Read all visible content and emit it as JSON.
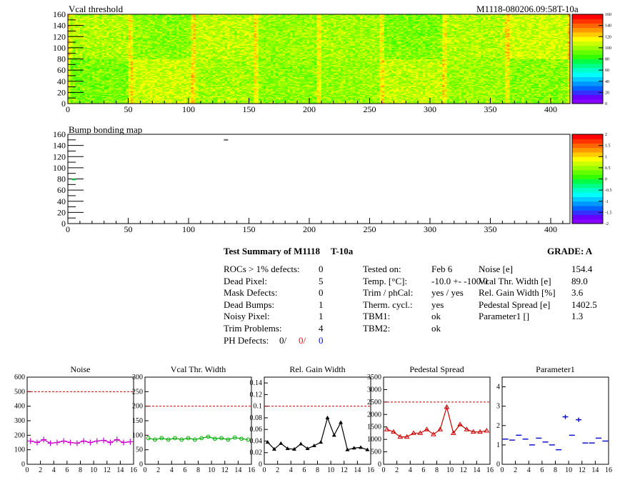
{
  "header": {
    "module_id": "M1118-080206.09:58T-10a"
  },
  "heatmap_vcal": {
    "title": "Vcal threshold"
  },
  "heatmap_bump": {
    "title": "Bump bonding map"
  },
  "summary": {
    "title": "Test Summary of M1118",
    "test_code": "T-10a",
    "grade_label": "GRADE:  A",
    "defects": [
      {
        "label": "ROCs > 1% defects:",
        "value": "0"
      },
      {
        "label": "Dead Pixel:",
        "value": "5"
      },
      {
        "label": "Mask Defects:",
        "value": "0"
      },
      {
        "label": "Dead Bumps:",
        "value": "1"
      },
      {
        "label": "Noisy Pixel:",
        "value": "1"
      },
      {
        "label": "Trim Problems:",
        "value": "4"
      }
    ],
    "ph_defects": {
      "label": "PH Defects:",
      "v1": "0/",
      "v2": "0/",
      "v3": "0"
    },
    "conditions": [
      {
        "label": "Tested on:",
        "value": "Feb 6"
      },
      {
        "label": "Temp. [°C]:",
        "value": "-10.0 +- -100.0"
      },
      {
        "label": "Trim / phCal:",
        "value": "yes / yes"
      },
      {
        "label": "Therm. cycl.:",
        "value": "yes"
      },
      {
        "label": "TBM1:",
        "value": "ok"
      },
      {
        "label": "TBM2:",
        "value": "ok"
      }
    ],
    "metrics": [
      {
        "label": "Noise [e]",
        "value": "154.4"
      },
      {
        "label": "Vcal Thr. Width [e]",
        "value": "89.0"
      },
      {
        "label": "Rel. Gain Width [%]",
        "value": "3.6"
      },
      {
        "label": "Pedestal Spread [e]",
        "value": "1402.5"
      },
      {
        "label": "Parameter1 []",
        "value": "1.3"
      }
    ]
  },
  "chart_data": [
    {
      "type": "heatmap",
      "title": "Vcal threshold",
      "xlim": [
        0,
        416
      ],
      "ylim": [
        0,
        160
      ],
      "xticks": [
        0,
        50,
        100,
        150,
        200,
        250,
        300,
        350,
        400
      ],
      "yticks": [
        0,
        20,
        40,
        60,
        80,
        100,
        120,
        140,
        160
      ],
      "zlim": [
        0,
        160
      ],
      "zticks": [
        0,
        20,
        40,
        60,
        80,
        100,
        120,
        140,
        160
      ],
      "roc_means_bottom": [
        95,
        108,
        102,
        98,
        100,
        106,
        101,
        97
      ],
      "roc_means_top": [
        104,
        98,
        106,
        100,
        102,
        96,
        104,
        108
      ]
    },
    {
      "type": "heatmap",
      "title": "Bump bonding map",
      "xlim": [
        0,
        416
      ],
      "ylim": [
        0,
        160
      ],
      "xticks": [
        0,
        50,
        100,
        150,
        200,
        250,
        300,
        350,
        400
      ],
      "yticks": [
        0,
        20,
        40,
        60,
        80,
        100,
        120,
        140,
        160
      ],
      "zlim": [
        -2,
        2
      ],
      "zticks": [
        -2,
        -1.5,
        -1,
        -0.5,
        0,
        0.5,
        1,
        1.5,
        2
      ],
      "points": [
        [
          5,
          79,
          0
        ],
        [
          131,
          150,
          -0.2
        ]
      ]
    },
    {
      "type": "line",
      "title": "Noise",
      "color": "#cc00cc",
      "marker": "cross",
      "x": [
        0,
        1,
        2,
        3,
        4,
        5,
        6,
        7,
        8,
        9,
        10,
        11,
        12,
        13,
        14,
        15
      ],
      "values": [
        160,
        150,
        170,
        145,
        150,
        160,
        150,
        145,
        160,
        150,
        160,
        165,
        150,
        170,
        150,
        155
      ],
      "ylim": [
        0,
        600
      ],
      "yticks": [
        0,
        100,
        200,
        300,
        400,
        500,
        600
      ],
      "xlim": [
        0,
        16
      ],
      "xticks": [
        0,
        2,
        4,
        6,
        8,
        10,
        12,
        14,
        16
      ],
      "threshold": 500
    },
    {
      "type": "line",
      "title": "Vcal Thr. Width",
      "color": "#00aa00",
      "marker": "circle",
      "x": [
        0,
        1,
        2,
        3,
        4,
        5,
        6,
        7,
        8,
        9,
        10,
        11,
        12,
        13,
        14,
        15
      ],
      "values": [
        90,
        85,
        90,
        85,
        90,
        85,
        90,
        85,
        90,
        95,
        88,
        90,
        85,
        92,
        88,
        85
      ],
      "ylim": [
        0,
        300
      ],
      "yticks": [
        0,
        50,
        100,
        150,
        200,
        250,
        300
      ],
      "xlim": [
        0,
        16
      ],
      "xticks": [
        0,
        2,
        4,
        6,
        8,
        10,
        12,
        14,
        16
      ],
      "threshold": 200
    },
    {
      "type": "line",
      "title": "Rel. Gain Width",
      "color": "#000000",
      "marker": "triangle",
      "x": [
        0,
        1,
        2,
        3,
        4,
        5,
        6,
        7,
        8,
        9,
        10,
        11,
        12,
        13,
        14,
        15
      ],
      "values": [
        0.038,
        0.026,
        0.036,
        0.027,
        0.026,
        0.035,
        0.027,
        0.032,
        0.038,
        0.08,
        0.05,
        0.072,
        0.025,
        0.028,
        0.029,
        0.025
      ],
      "ylim": [
        0,
        0.15
      ],
      "yticks": [
        0,
        0.02,
        0.04,
        0.06,
        0.08,
        0.1,
        0.12,
        0.14
      ],
      "xlim": [
        0,
        16
      ],
      "xticks": [
        0,
        2,
        4,
        6,
        8,
        10,
        12,
        14,
        16
      ],
      "threshold": 0.1
    },
    {
      "type": "line",
      "title": "Pedestal Spread",
      "color": "#cc0000",
      "marker": "triangle-open",
      "x": [
        0,
        1,
        2,
        3,
        4,
        5,
        6,
        7,
        8,
        9,
        10,
        11,
        12,
        13,
        14,
        15
      ],
      "values": [
        1400,
        1300,
        1100,
        1100,
        1250,
        1250,
        1400,
        1200,
        1400,
        2300,
        1250,
        1600,
        1400,
        1300,
        1300,
        1350
      ],
      "ylim": [
        0,
        3500
      ],
      "yticks": [
        0,
        500,
        1000,
        1500,
        2000,
        2500,
        3000,
        3500
      ],
      "xlim": [
        0,
        16
      ],
      "xticks": [
        0,
        2,
        4,
        6,
        8,
        10,
        12,
        14,
        16
      ],
      "threshold": 2500
    },
    {
      "type": "scatter",
      "title": "Parameter1",
      "color": "#0000cc",
      "marker": "dash",
      "x": [
        0,
        1,
        2,
        3,
        4,
        5,
        6,
        7,
        8,
        9,
        10,
        11,
        12,
        13,
        14,
        15
      ],
      "values": [
        1.3,
        1.25,
        1.5,
        1.3,
        1.0,
        1.35,
        1.15,
        1.0,
        0.75,
        2.45,
        1.5,
        2.3,
        1.1,
        1.1,
        1.35,
        1.2
      ],
      "ylim": [
        0,
        4.5
      ],
      "yticks": [
        0,
        1,
        2,
        3,
        4
      ],
      "xlim": [
        0,
        16
      ],
      "xticks": [
        0,
        2,
        4,
        6,
        8,
        10,
        12,
        14,
        16
      ]
    }
  ]
}
